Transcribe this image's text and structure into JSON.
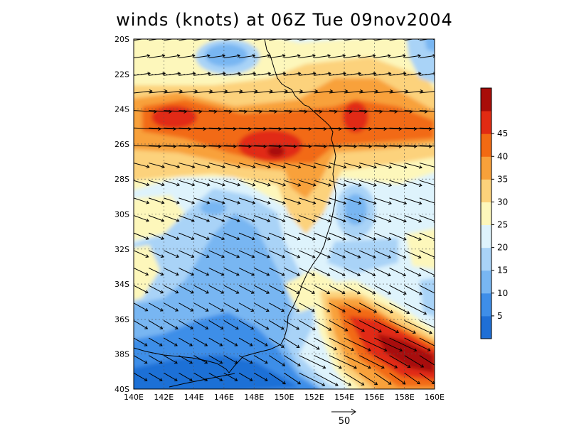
{
  "title": "winds (knots) at 06Z Tue 09nov2004",
  "lat_ticks": [
    "20S",
    "22S",
    "24S",
    "26S",
    "28S",
    "30S",
    "32S",
    "34S",
    "36S",
    "38S",
    "40S"
  ],
  "lon_ticks": [
    "140E",
    "142E",
    "144E",
    "146E",
    "148E",
    "150E",
    "152E",
    "154E",
    "156E",
    "158E",
    "160E"
  ],
  "colorbar": {
    "labels": [
      "5",
      "10",
      "15",
      "20",
      "25",
      "30",
      "35",
      "40",
      "45"
    ],
    "colors": [
      "#1f6fd6",
      "#3e8ee8",
      "#78b6f2",
      "#a9d3f7",
      "#def3fc",
      "#fdf7bb",
      "#fcd27b",
      "#f8a13a",
      "#f26a12",
      "#e12b12",
      "#a80d08"
    ]
  },
  "reference_vector": {
    "label": "50"
  }
}
